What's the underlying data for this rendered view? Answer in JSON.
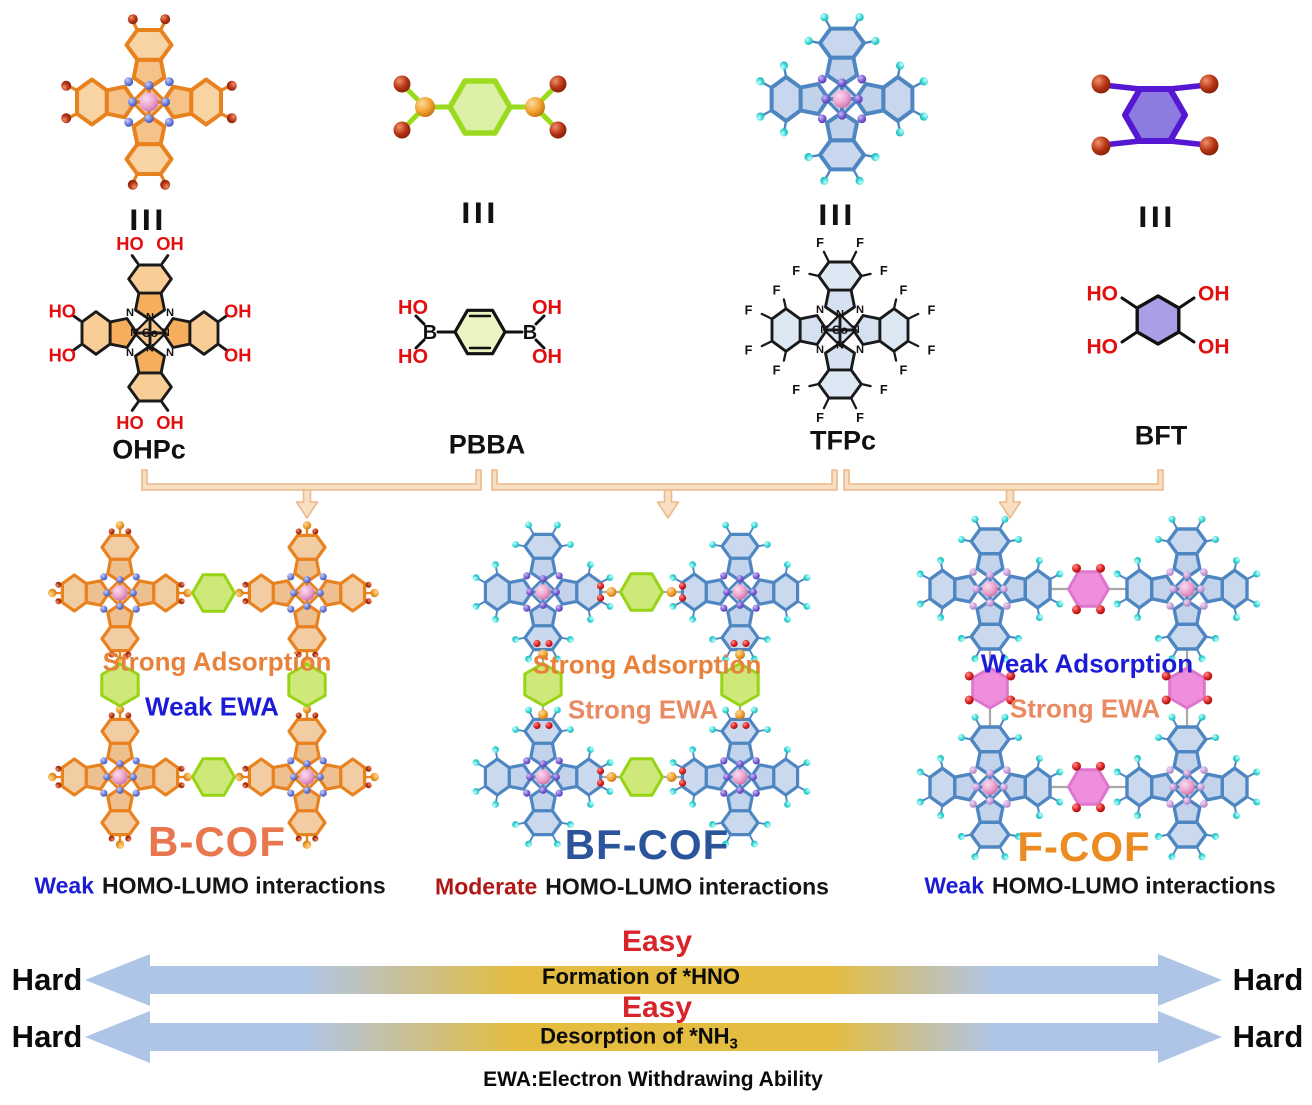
{
  "palette": {
    "background": "#FFFFFF",
    "black": "#111111",
    "red_label": "#E30E0E",
    "connector": "#A9A9A9",
    "bracket": {
      "fill": "#F8DFC2",
      "stroke": "#EBB98C"
    },
    "arrow": {
      "blue": "#AEC5E8",
      "gold": "#E4BC3F"
    },
    "easy_color": "#D8252B",
    "hard_color": "#0A0A0A",
    "metal": "#ECA3CF",
    "n_blue": "#6E7CDB",
    "n_purple": "#7A5FD6",
    "n_pink": "#CBA3DC",
    "cyan": "#3EDBDB",
    "o_dark": "#B63315",
    "o_bright": "#DD2222",
    "b_orange": "#F2A22C",
    "orange_pc": {
      "bond": "#E8821E",
      "pent": "#F5C38A",
      "hex": "#F8D3A4",
      "core": "#EEC3A8"
    },
    "orange_pc2d": {
      "bond": "#1A1A1A",
      "pent": "#F6AE5C",
      "hex": "#F9CE96",
      "core": "#F7C892"
    },
    "blue_pc": {
      "bond": "#4E86C2",
      "pent": "#C2D2EA",
      "hex": "#C8D7EE",
      "core": "#C5D3EB"
    },
    "blue_pc2d": {
      "bond": "#1A1A1A",
      "pent": "#D5E0F0",
      "hex": "#DEE8F5",
      "core": "#D7E2F2"
    },
    "green_link": {
      "fill": "#CFE87A",
      "stroke": "#96D414"
    },
    "pink_link": {
      "fill": "#EE8EDD",
      "stroke": "#DD76CC"
    },
    "green_mol": {
      "fill": "#DCF0A8",
      "stroke": "#9ADB1E"
    },
    "green_mol2d": {
      "fill": "#E9F4C0",
      "stroke": "#111111"
    },
    "purple_mol": {
      "fill": "#8C7CE0",
      "stroke": "#5617D2"
    },
    "purple_mol2d": {
      "fill": "#AB9EE6",
      "stroke": "#111111"
    }
  },
  "monomers": [
    {
      "label": "OHPc",
      "equiv": "III",
      "atoms": {
        "n": "N",
        "metal": "Co",
        "top": [
          "HO",
          "OH"
        ],
        "bottom": [
          "HO",
          "OH"
        ],
        "left": [
          "HO",
          "HO"
        ],
        "right": [
          "OH",
          "OH"
        ]
      }
    },
    {
      "label": "PBBA",
      "equiv": "III",
      "atoms": {
        "b": "B",
        "left": [
          "HO",
          "HO"
        ],
        "right": [
          "OH",
          "OH"
        ]
      }
    },
    {
      "label": "TFPc",
      "equiv": "III",
      "atoms": {
        "n": "N",
        "metal": "Co",
        "f": "F"
      }
    },
    {
      "label": "BFT",
      "equiv": "III",
      "atoms": {
        "left": [
          "HO",
          "HO"
        ],
        "right": [
          "OH",
          "OH"
        ]
      }
    }
  ],
  "cofs": [
    {
      "name": "B-COF",
      "name_color": "#E8764E",
      "adsorption": "Strong Adsorption",
      "adsorption_color": "#E8813A",
      "ewa": "Weak EWA",
      "ewa_color": "#1C1CD6",
      "homo_prefix": "Weak",
      "homo_prefix_color": "#1C1CD6",
      "homo_rest": "HOMO-LUMO interactions"
    },
    {
      "name": "BF-COF",
      "name_color": "#2C549B",
      "adsorption": "Strong Adsorption",
      "adsorption_color": "#E8813A",
      "ewa": "Strong EWA",
      "ewa_color": "#E98A62",
      "homo_prefix": "Moderate",
      "homo_prefix_color": "#AE1917",
      "homo_rest": "HOMO-LUMO interactions"
    },
    {
      "name": "F-COF",
      "name_color": "#EB8B21",
      "adsorption": "Weak Adsorption",
      "adsorption_color": "#1C1CD6",
      "ewa": "Strong EWA",
      "ewa_color": "#E98A62",
      "homo_prefix": "Weak",
      "homo_prefix_color": "#1C1CD6",
      "homo_rest": "HOMO-LUMO interactions"
    }
  ],
  "scales": [
    {
      "easy": "Easy",
      "hard_left": "Hard",
      "hard_right": "Hard",
      "center": [
        {
          "t": "Formation of *HNO"
        }
      ]
    },
    {
      "easy": "Easy",
      "hard_left": "Hard",
      "hard_right": "Hard",
      "center": [
        {
          "t": "Desorption of *NH"
        },
        {
          "t": "3",
          "sub": true
        }
      ]
    }
  ],
  "footer": "EWA:Electron Withdrawing Ability"
}
